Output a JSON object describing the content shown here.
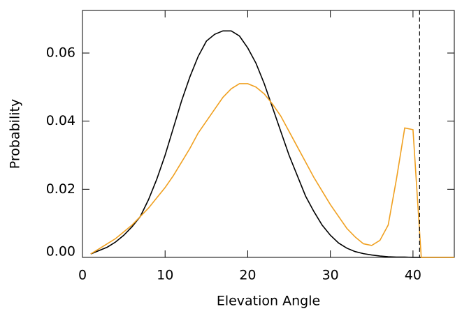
{
  "chart_data": {
    "type": "line",
    "x_label": "Elevation Angle",
    "y_label": "Probability",
    "x": [
      1,
      2,
      3,
      4,
      5,
      6,
      7,
      8,
      9,
      10,
      11,
      12,
      13,
      14,
      15,
      16,
      17,
      18,
      19,
      20,
      21,
      22,
      23,
      24,
      25,
      26,
      27,
      28,
      29,
      30,
      31,
      32,
      33,
      34,
      35,
      36,
      37,
      38,
      39,
      40,
      41,
      42,
      43,
      44,
      45
    ],
    "series": [
      {
        "color": "#000000",
        "values": [
          0.001,
          0.002,
          0.003,
          0.0045,
          0.0065,
          0.009,
          0.012,
          0.017,
          0.023,
          0.03,
          0.038,
          0.046,
          0.053,
          0.059,
          0.0635,
          0.0655,
          0.0665,
          0.0665,
          0.065,
          0.0615,
          0.057,
          0.051,
          0.044,
          0.037,
          0.03,
          0.024,
          0.018,
          0.0135,
          0.0095,
          0.0065,
          0.0042,
          0.0027,
          0.0017,
          0.0011,
          0.0007,
          0.0004,
          0.0002,
          0.0001,
          0.0001,
          0,
          0,
          0,
          0,
          0,
          0
        ]
      },
      {
        "color": "#f0a020",
        "values": [
          0.001,
          0.0025,
          0.004,
          0.0055,
          0.0075,
          0.0095,
          0.012,
          0.0145,
          0.0175,
          0.0205,
          0.024,
          0.028,
          0.032,
          0.0365,
          0.04,
          0.0435,
          0.047,
          0.0495,
          0.051,
          0.051,
          0.05,
          0.048,
          0.045,
          0.0415,
          0.037,
          0.0325,
          0.028,
          0.0235,
          0.0195,
          0.0155,
          0.012,
          0.0085,
          0.006,
          0.004,
          0.0035,
          0.005,
          0.0095,
          0.023,
          0.038,
          0.0375,
          0,
          0,
          0,
          0,
          0
        ]
      }
    ],
    "vline": 40.8,
    "xlim": [
      0,
      45
    ],
    "ylim": [
      0,
      0.0725
    ],
    "xticks": [
      0,
      10,
      20,
      30,
      40
    ],
    "yticks": [
      {
        "value": 0,
        "label": "0.00"
      },
      {
        "value": 0.02,
        "label": "0.02"
      },
      {
        "value": 0.04,
        "label": "0.04"
      },
      {
        "value": 0.06,
        "label": "0.06"
      }
    ]
  }
}
